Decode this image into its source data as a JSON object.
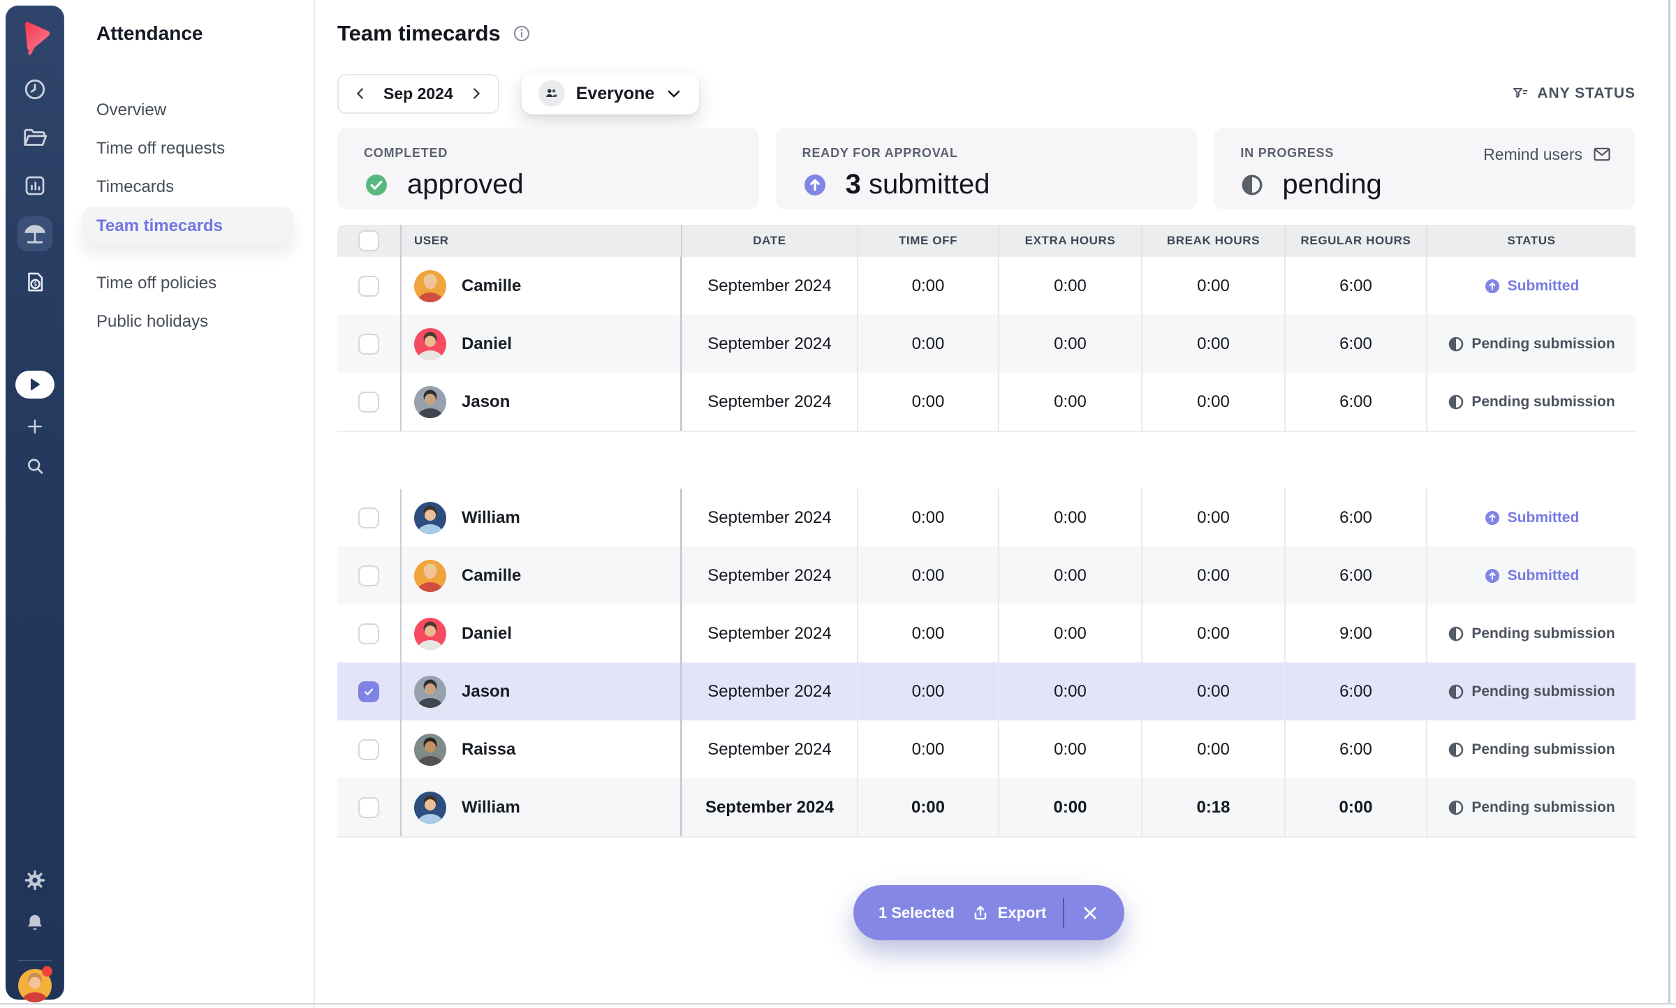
{
  "colors": {
    "rail_bg": "#243A5E",
    "accent_purple": "#7276E2",
    "selected_row_bg": "#E3E4F8",
    "action_bar_bg": "#8488E4",
    "success_green": "#57B97F",
    "pending_grey": "#4C525E",
    "card_bg": "#F6F6F8"
  },
  "rail": {
    "icons": [
      "brand-logo",
      "clock-icon",
      "folder-icon",
      "bar-chart-icon",
      "beach-umbrella-icon",
      "invoice-icon",
      "play-icon",
      "plus-icon",
      "search-icon",
      "gear-icon",
      "bell-icon",
      "user-avatar"
    ]
  },
  "sidebar": {
    "title": "Attendance",
    "items": [
      {
        "label": "Overview"
      },
      {
        "label": "Time off requests"
      },
      {
        "label": "Timecards"
      },
      {
        "label": "Team timecards"
      },
      {
        "label": "Time off policies"
      },
      {
        "label": "Public holidays"
      }
    ]
  },
  "header": {
    "title": "Team timecards",
    "info_icon": "info-icon"
  },
  "filters": {
    "month": "Sep 2024",
    "audience": "Everyone",
    "status_filter": "ANY STATUS"
  },
  "cards": [
    {
      "label": "COMPLETED",
      "value": "approved",
      "icon": "check-circle"
    },
    {
      "label": "READY FOR APPROVAL",
      "value_strong": "3",
      "value": "submitted",
      "icon": "arrow-up-circle"
    },
    {
      "label": "IN PROGRESS",
      "value": "pending",
      "icon": "half-circle",
      "action_label": "Remind users",
      "action_icon": "envelope-icon"
    }
  ],
  "table": {
    "headers": [
      "USER",
      "DATE",
      "TIME OFF",
      "EXTRA HOURS",
      "BREAK HOURS",
      "REGULAR HOURS",
      "STATUS"
    ],
    "groups": [
      {
        "rows": [
          {
            "user": "Camille",
            "date": "September 2024",
            "time_off": "0:00",
            "extra_hours": "0:00",
            "break_hours": "0:00",
            "regular_hours": "6:00",
            "status": "Submitted",
            "status_type": "submitted",
            "selected": false,
            "bold": false,
            "avatar": {
              "bg": "#F0A43C",
              "hair": "#E7CD96",
              "skin": "#F2C39B",
              "shirt": "#D14D3F"
            }
          },
          {
            "user": "Daniel",
            "date": "September 2024",
            "time_off": "0:00",
            "extra_hours": "0:00",
            "break_hours": "0:00",
            "regular_hours": "6:00",
            "status": "Pending submission",
            "status_type": "pending",
            "selected": false,
            "bold": false,
            "avatar": {
              "bg": "#F84A60",
              "hair": "#4A3A33",
              "skin": "#EDB98F",
              "shirt": "#E8E6E4"
            }
          },
          {
            "user": "Jason",
            "date": "September 2024",
            "time_off": "0:00",
            "extra_hours": "0:00",
            "break_hours": "0:00",
            "regular_hours": "6:00",
            "status": "Pending submission",
            "status_type": "pending",
            "selected": false,
            "bold": false,
            "avatar": {
              "bg": "#97A1AD",
              "hair": "#2C2E31",
              "skin": "#C9A284",
              "shirt": "#41454D"
            }
          }
        ]
      },
      {
        "rows": [
          {
            "user": "William",
            "date": "September 2024",
            "time_off": "0:00",
            "extra_hours": "0:00",
            "break_hours": "0:00",
            "regular_hours": "6:00",
            "status": "Submitted",
            "status_type": "submitted",
            "selected": false,
            "bold": false,
            "avatar": {
              "bg": "#2C4E7E",
              "hair": "#3E3229",
              "skin": "#EBBE9A",
              "shirt": "#A8CBE8"
            }
          },
          {
            "user": "Camille",
            "date": "September 2024",
            "time_off": "0:00",
            "extra_hours": "0:00",
            "break_hours": "0:00",
            "regular_hours": "6:00",
            "status": "Submitted",
            "status_type": "submitted",
            "selected": false,
            "bold": false,
            "avatar": {
              "bg": "#F0A43C",
              "hair": "#E7CD96",
              "skin": "#F2C39B",
              "shirt": "#D14D3F"
            }
          },
          {
            "user": "Daniel",
            "date": "September 2024",
            "time_off": "0:00",
            "extra_hours": "0:00",
            "break_hours": "0:00",
            "regular_hours": "9:00",
            "status": "Pending submission",
            "status_type": "pending",
            "selected": false,
            "bold": false,
            "avatar": {
              "bg": "#F84A60",
              "hair": "#4A3A33",
              "skin": "#EDB98F",
              "shirt": "#E8E6E4"
            }
          },
          {
            "user": "Jason",
            "date": "September 2024",
            "time_off": "0:00",
            "extra_hours": "0:00",
            "break_hours": "0:00",
            "regular_hours": "6:00",
            "status": "Pending submission",
            "status_type": "pending",
            "selected": true,
            "bold": false,
            "avatar": {
              "bg": "#97A1AD",
              "hair": "#2C2E31",
              "skin": "#C9A284",
              "shirt": "#41454D"
            }
          },
          {
            "user": "Raissa",
            "date": "September 2024",
            "time_off": "0:00",
            "extra_hours": "0:00",
            "break_hours": "0:00",
            "regular_hours": "6:00",
            "status": "Pending submission",
            "status_type": "pending",
            "selected": false,
            "bold": false,
            "avatar": {
              "bg": "#7E8B88",
              "hair": "#2A2420",
              "skin": "#C28E63",
              "shirt": "#55514E"
            }
          },
          {
            "user": "William",
            "date": "September 2024",
            "time_off": "0:00",
            "extra_hours": "0:00",
            "break_hours": "0:18",
            "regular_hours": "0:00",
            "status": "Pending submission",
            "status_type": "pending",
            "selected": false,
            "bold": true,
            "avatar": {
              "bg": "#2C4E7E",
              "hair": "#3E3229",
              "skin": "#EBBE9A",
              "shirt": "#A8CBE8"
            }
          }
        ]
      }
    ]
  },
  "bottom_bar": {
    "selected_label": "1 Selected",
    "export_label": "Export"
  }
}
